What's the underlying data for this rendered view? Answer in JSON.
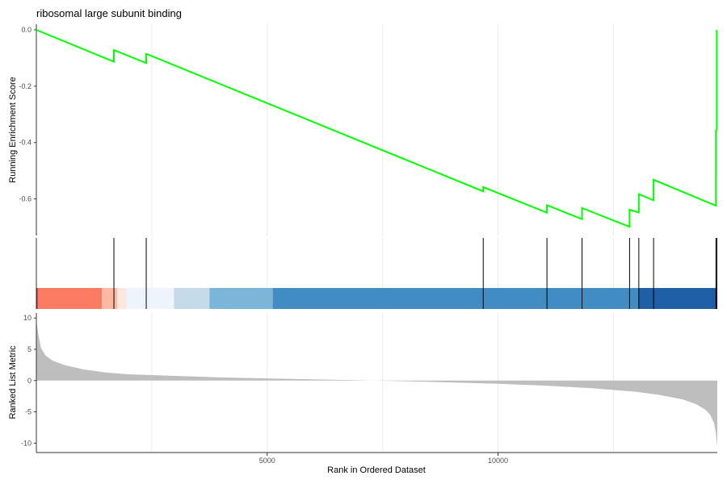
{
  "chart_data": {
    "type": "line",
    "title": "ribosomal large subunit binding",
    "xlabel": "Rank in Ordered Dataset",
    "x_ticks": [
      5000,
      10000
    ],
    "xlim": [
      0,
      14750
    ],
    "grid_x": [
      2500,
      5000,
      7500,
      10000,
      12500
    ],
    "es_panel": {
      "ylabel": "Running Enrichment Score",
      "ylim": [
        -0.73,
        0.02
      ],
      "y_ticks": [
        0.0,
        -0.2,
        -0.4,
        -0.6
      ],
      "y_tick_labels": [
        "0.0",
        "-0.2",
        "-0.4",
        "-0.6"
      ],
      "line_color": "#00ff00",
      "series": [
        {
          "x": [
            0,
            1680,
            1680,
            2380,
            2380,
            9680,
            9680,
            11060,
            11060,
            11820,
            11820,
            12850,
            12850,
            13050,
            13050,
            13370,
            13370,
            14720,
            14720,
            14740,
            14740
          ],
          "y": [
            0.0,
            -0.113,
            -0.072,
            -0.118,
            -0.085,
            -0.573,
            -0.558,
            -0.649,
            -0.622,
            -0.672,
            -0.632,
            -0.699,
            -0.638,
            -0.648,
            -0.583,
            -0.605,
            -0.532,
            -0.624,
            -0.358,
            -0.355,
            0.0
          ]
        }
      ]
    },
    "hits": [
      1680,
      2380,
      9680,
      11060,
      11820,
      12850,
      13050,
      13370,
      14720,
      14740
    ],
    "color_bar": [
      {
        "from": 0,
        "to": 30,
        "color": "#b2182b"
      },
      {
        "from": 30,
        "to": 1420,
        "color": "#fc7b63"
      },
      {
        "from": 1420,
        "to": 1750,
        "color": "#fdb9a1"
      },
      {
        "from": 1750,
        "to": 1950,
        "color": "#fde6dd"
      },
      {
        "from": 1950,
        "to": 2980,
        "color": "#eef4fb"
      },
      {
        "from": 2980,
        "to": 3750,
        "color": "#c5dbea"
      },
      {
        "from": 3750,
        "to": 5120,
        "color": "#7bb6d9"
      },
      {
        "from": 5120,
        "to": 13050,
        "color": "#428cc4"
      },
      {
        "from": 13050,
        "to": 14750,
        "color": "#1f5fa5"
      }
    ],
    "metric_panel": {
      "ylabel": "Ranked List Metric",
      "ylim": [
        -11.5,
        10.8
      ],
      "y_ticks": [
        10,
        5,
        0,
        -5,
        -10
      ],
      "y_tick_labels": [
        "10",
        "5",
        "0",
        "-5",
        "-10"
      ],
      "fill_color": "#bebebe",
      "curve": {
        "x": [
          0,
          40,
          100,
          200,
          350,
          600,
          1000,
          1500,
          2000,
          3000,
          4000,
          5000,
          6000,
          7000,
          8000,
          9000,
          10000,
          11000,
          12000,
          13000,
          13500,
          14000,
          14300,
          14500,
          14600,
          14680,
          14720,
          14750
        ],
        "y": [
          9.5,
          7.5,
          5.2,
          4.0,
          3.2,
          2.5,
          1.8,
          1.3,
          1.0,
          0.75,
          0.5,
          0.35,
          0.2,
          0.05,
          -0.1,
          -0.3,
          -0.5,
          -0.8,
          -1.2,
          -1.8,
          -2.3,
          -3.0,
          -3.8,
          -4.7,
          -5.5,
          -6.8,
          -8.5,
          -10.5
        ]
      }
    }
  }
}
